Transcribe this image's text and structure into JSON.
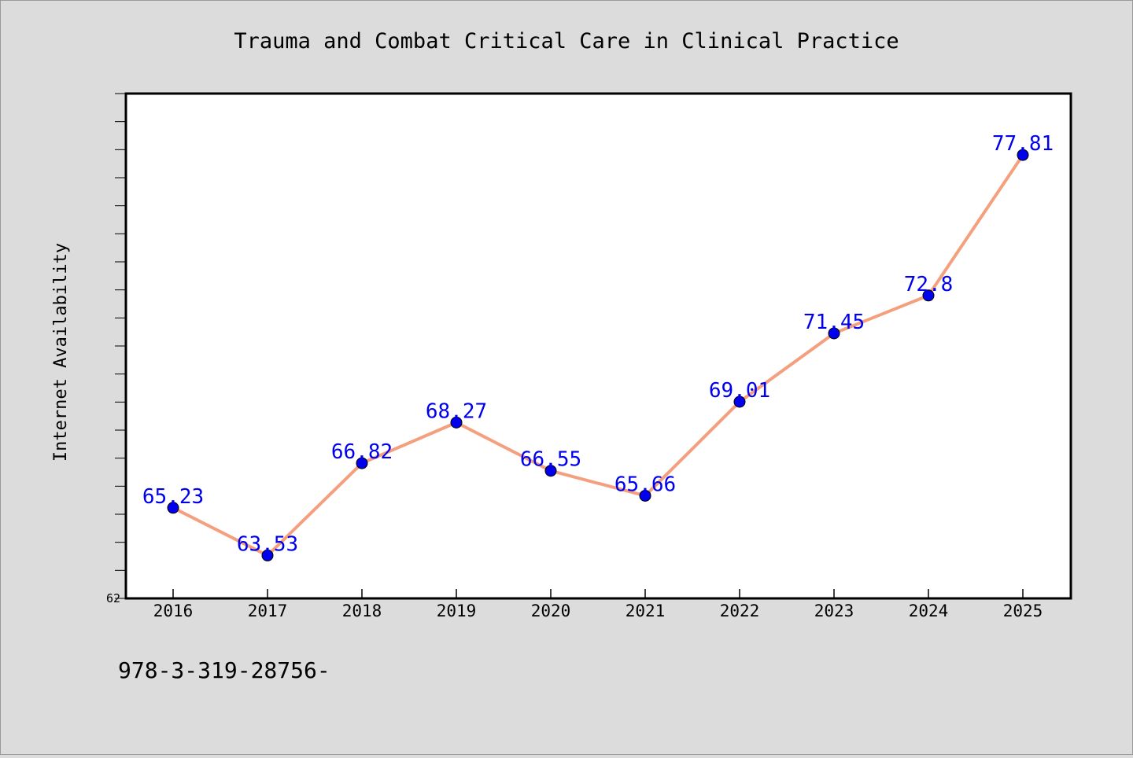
{
  "chart_data": {
    "type": "line",
    "title": "Trauma and Combat Critical Care in Clinical Practice",
    "ylabel": "Internet Availability",
    "xlabel": "",
    "categories": [
      "2016",
      "2017",
      "2018",
      "2019",
      "2020",
      "2021",
      "2022",
      "2023",
      "2024",
      "2025"
    ],
    "series": [
      {
        "values": [
          65.23,
          63.53,
          66.82,
          68.27,
          66.55,
          65.66,
          69.01,
          71.45,
          72.8,
          77.81
        ],
        "labels": [
          "65.23",
          "63.53",
          "66.82",
          "68.27",
          "66.55",
          "65.66",
          "69.01",
          "71.45",
          "72.8",
          "77.81"
        ]
      }
    ],
    "y_tick_labels": [
      "62"
    ],
    "ylim": [
      62,
      80
    ],
    "grid": false,
    "footer": "978-3-319-28756-",
    "colors": {
      "line": "#f4a07e",
      "marker": "#0000ee",
      "data_label": "#0000ee",
      "background": "#dcdcdc",
      "plot_background": "#ffffff"
    }
  }
}
